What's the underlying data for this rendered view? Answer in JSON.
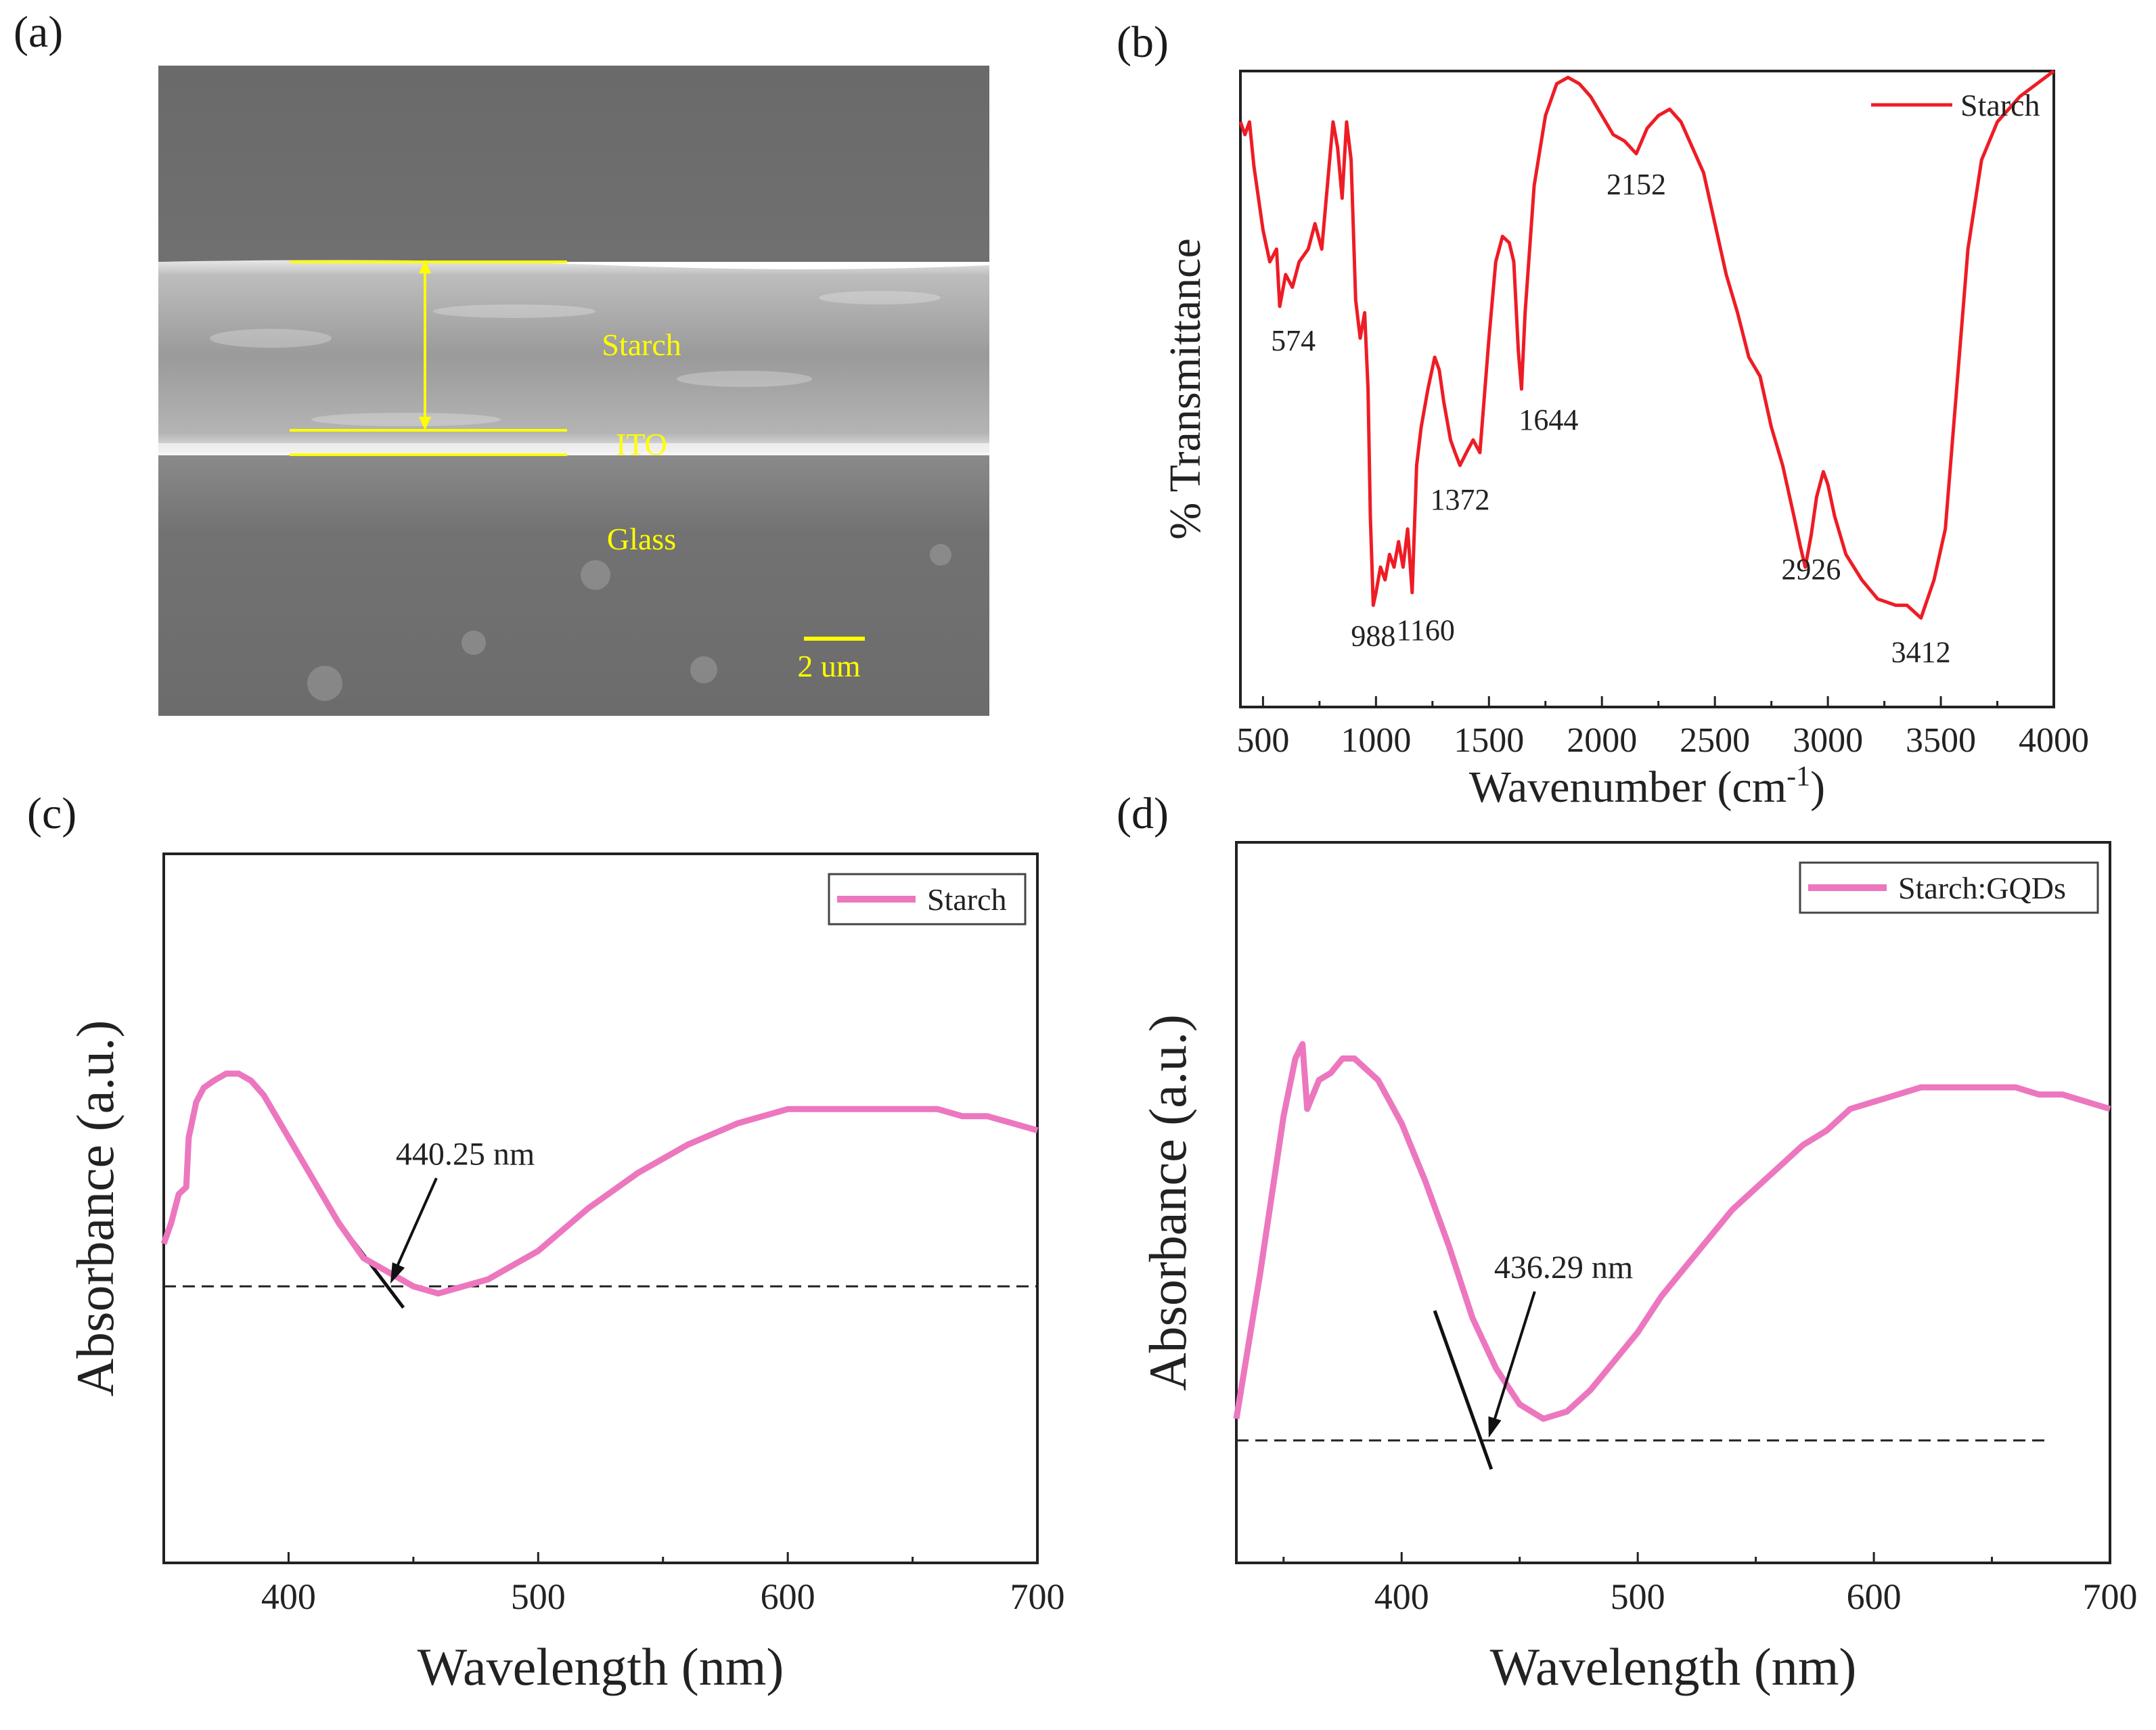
{
  "panels": {
    "a": "(a)",
    "b": "(b)",
    "c": "(c)",
    "d": "(d)"
  },
  "sem": {
    "labels": {
      "starch": "Starch",
      "ito": "ITO",
      "glass": "Glass"
    },
    "scalebar": "2 um"
  },
  "colors": {
    "ftir": "#ee1c25",
    "uv": "#ec77bf",
    "annot": "#ffff00"
  },
  "chart_data": [
    {
      "id": "b",
      "type": "line",
      "title": "",
      "xlabel_main": "Wavenumber (cm",
      "xlabel_sup": "-1",
      "xlabel_end": ")",
      "ylabel": "% Transmittance",
      "xlim": [
        400,
        4000
      ],
      "ylim": [
        0,
        100
      ],
      "xticks": [
        500,
        1000,
        1500,
        2000,
        2500,
        3000,
        3500,
        4000
      ],
      "legend": "Starch",
      "series": [
        {
          "name": "Starch",
          "x": [
            400,
            420,
            440,
            460,
            480,
            500,
            530,
            560,
            574,
            600,
            630,
            660,
            700,
            730,
            760,
            790,
            810,
            830,
            850,
            870,
            890,
            910,
            930,
            950,
            965,
            975,
            988,
            1000,
            1020,
            1040,
            1060,
            1080,
            1100,
            1120,
            1140,
            1160,
            1180,
            1200,
            1230,
            1260,
            1280,
            1300,
            1330,
            1350,
            1372,
            1400,
            1430,
            1460,
            1500,
            1530,
            1560,
            1590,
            1610,
            1630,
            1644,
            1660,
            1700,
            1750,
            1800,
            1850,
            1900,
            1950,
            2000,
            2050,
            2100,
            2152,
            2200,
            2250,
            2300,
            2350,
            2400,
            2450,
            2500,
            2550,
            2600,
            2650,
            2700,
            2750,
            2800,
            2850,
            2880,
            2900,
            2926,
            2950,
            2980,
            3000,
            3030,
            3080,
            3150,
            3220,
            3300,
            3350,
            3412,
            3470,
            3520,
            3570,
            3620,
            3680,
            3750,
            3850,
            4000
          ],
          "y": [
            92,
            90,
            92,
            85,
            80,
            75,
            70,
            72,
            63,
            68,
            66,
            70,
            72,
            76,
            72,
            84,
            92,
            88,
            80,
            92,
            86,
            64,
            58,
            62,
            50,
            30,
            16,
            18,
            22,
            20,
            24,
            22,
            26,
            22,
            28,
            18,
            38,
            44,
            50,
            55,
            53,
            48,
            42,
            40,
            38,
            40,
            42,
            40,
            58,
            70,
            74,
            73,
            70,
            56,
            50,
            62,
            82,
            93,
            98,
            99,
            98,
            96,
            93,
            90,
            89,
            87,
            91,
            93,
            94,
            92,
            88,
            84,
            76,
            68,
            62,
            55,
            52,
            44,
            38,
            30,
            25,
            22,
            27,
            33,
            37,
            35,
            30,
            24,
            20,
            17,
            16,
            16,
            14,
            20,
            28,
            50,
            72,
            86,
            92,
            96,
            100
          ]
        }
      ],
      "annotations": [
        {
          "x": 574,
          "text": "574"
        },
        {
          "x": 988,
          "text": "988"
        },
        {
          "x": 1160,
          "text": "1160"
        },
        {
          "x": 1372,
          "text": "1372"
        },
        {
          "x": 1644,
          "text": "1644"
        },
        {
          "x": 2152,
          "text": "2152"
        },
        {
          "x": 2926,
          "text": "2926"
        },
        {
          "x": 3412,
          "text": "3412"
        }
      ]
    },
    {
      "id": "c",
      "type": "line",
      "title": "",
      "xlabel": "Wavelength (nm)",
      "ylabel": "Absorbance (a.u.)",
      "xlim": [
        350,
        700
      ],
      "ylim": [
        0,
        100
      ],
      "xticks": [
        400,
        500,
        600,
        700
      ],
      "legend": "Starch",
      "baseline_y": 39,
      "tangent": {
        "x1": 416,
        "y1": 50,
        "x2": 446,
        "y2": 36
      },
      "series": [
        {
          "name": "Starch",
          "x": [
            350,
            353,
            356,
            359,
            360,
            363,
            366,
            370,
            375,
            380,
            385,
            390,
            400,
            410,
            420,
            430,
            440,
            450,
            460,
            470,
            480,
            490,
            500,
            510,
            520,
            540,
            560,
            580,
            600,
            610,
            620,
            640,
            650,
            660,
            670,
            680,
            690,
            700
          ],
          "y": [
            45,
            48,
            52,
            53,
            60,
            65,
            67,
            68,
            69,
            69,
            68,
            66,
            60,
            54,
            48,
            43,
            41,
            39,
            38,
            39,
            40,
            42,
            44,
            47,
            50,
            55,
            59,
            62,
            64,
            64,
            64,
            64,
            64,
            64,
            63,
            63,
            62,
            61
          ]
        }
      ],
      "annotation": {
        "text": "440.25 nm",
        "x": 440.25
      }
    },
    {
      "id": "d",
      "type": "line",
      "title": "",
      "xlabel": "Wavelength (nm)",
      "ylabel": "Absorbance (a.u.)",
      "xlim": [
        330,
        700
      ],
      "ylim": [
        0,
        100
      ],
      "xticks": [
        400,
        500,
        600,
        700
      ],
      "legend": "Starch:GQDs",
      "baseline_y": 17,
      "tangent": {
        "x1": 414,
        "y1": 35,
        "x2": 438,
        "y2": 13
      },
      "series": [
        {
          "name": "Starch:GQDs",
          "x": [
            330,
            340,
            350,
            355,
            358,
            360,
            365,
            370,
            375,
            380,
            390,
            400,
            410,
            420,
            430,
            440,
            450,
            460,
            470,
            480,
            490,
            500,
            510,
            520,
            530,
            540,
            550,
            560,
            570,
            580,
            590,
            600,
            610,
            620,
            640,
            660,
            670,
            680,
            690,
            700
          ],
          "y": [
            20,
            40,
            62,
            70,
            72,
            63,
            67,
            68,
            70,
            70,
            67,
            61,
            53,
            44,
            34,
            27,
            22,
            20,
            21,
            24,
            28,
            32,
            37,
            41,
            45,
            49,
            52,
            55,
            58,
            60,
            63,
            64,
            65,
            66,
            66,
            66,
            65,
            65,
            64,
            63
          ]
        }
      ],
      "annotation": {
        "text": "436.29 nm",
        "x": 436.29
      }
    }
  ]
}
